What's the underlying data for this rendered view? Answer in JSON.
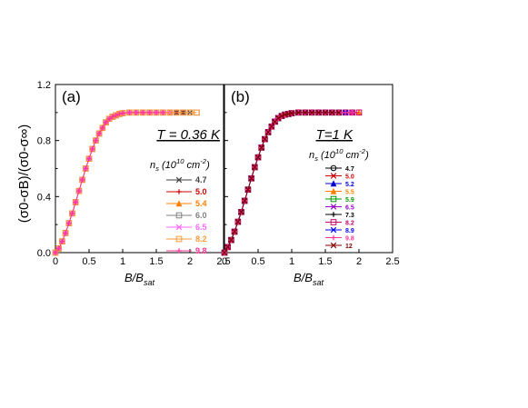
{
  "figure": {
    "ylabel": "(σ0-σB)/(σ0-σ∞)",
    "xlabel": "B/Bsat"
  },
  "chart_data": [
    {
      "type": "line",
      "panel_label": "(a)",
      "temperature_label": "T = 0.36 K",
      "legend_title": "ns (10^10 cm^-2)",
      "xlabel": "B/Bsat",
      "ylabel": "(σ0-σB)/(σ0-σ∞)",
      "xlim": [
        0,
        2.5
      ],
      "ylim": [
        0,
        1.2
      ],
      "xticks": [
        "0",
        "0.5",
        "1",
        "1.5",
        "2",
        "2.5"
      ],
      "yticks": [
        "0.0",
        "0.4",
        "0.8",
        "1.2"
      ],
      "grid": false,
      "legend_position": "right",
      "x": [
        0,
        0.05,
        0.1,
        0.15,
        0.2,
        0.25,
        0.3,
        0.35,
        0.4,
        0.45,
        0.5,
        0.55,
        0.6,
        0.65,
        0.7,
        0.75,
        0.8,
        0.85,
        0.9,
        0.95,
        1.0,
        1.1,
        1.2,
        1.3,
        1.4,
        1.5,
        1.6,
        1.7,
        1.8,
        1.9,
        2.0,
        2.1
      ],
      "series": [
        {
          "name": "4.7",
          "color": "#404040",
          "marker": "x",
          "values": [
            0,
            0.03,
            0.08,
            0.14,
            0.21,
            0.28,
            0.36,
            0.44,
            0.52,
            0.6,
            0.67,
            0.74,
            0.8,
            0.85,
            0.89,
            0.93,
            0.955,
            0.97,
            0.98,
            0.99,
            0.995,
            1,
            1,
            1,
            1,
            1,
            1,
            1,
            1,
            1,
            1,
            null
          ]
        },
        {
          "name": "5.0",
          "color": "#cc0000",
          "marker": "plus",
          "values": [
            0,
            0.03,
            0.08,
            0.14,
            0.21,
            0.28,
            0.36,
            0.44,
            0.52,
            0.6,
            0.67,
            0.74,
            0.8,
            0.85,
            0.89,
            0.93,
            0.955,
            0.97,
            0.98,
            0.99,
            0.995,
            1,
            1,
            1,
            1,
            1,
            1,
            1,
            1,
            1,
            null,
            null
          ]
        },
        {
          "name": "5.4",
          "color": "#ff8000",
          "marker": "triangle",
          "values": [
            0,
            0.03,
            0.08,
            0.14,
            0.21,
            0.28,
            0.36,
            0.44,
            0.52,
            0.6,
            0.67,
            0.74,
            0.8,
            0.85,
            0.89,
            0.93,
            0.955,
            0.97,
            0.98,
            0.99,
            0.995,
            1,
            1,
            1,
            1,
            1,
            1,
            1,
            null,
            null,
            null,
            null
          ]
        },
        {
          "name": "6.0",
          "color": "#808080",
          "marker": "square",
          "values": [
            0,
            0.03,
            0.08,
            0.14,
            0.21,
            0.28,
            0.36,
            0.44,
            0.52,
            0.6,
            0.67,
            0.74,
            0.8,
            0.85,
            0.89,
            0.93,
            0.955,
            0.97,
            0.98,
            0.99,
            0.995,
            1,
            1,
            1,
            1,
            1,
            1,
            1,
            1,
            1,
            1,
            1
          ]
        },
        {
          "name": "6.5",
          "color": "#ff66ff",
          "marker": "x",
          "values": [
            0,
            0.03,
            0.08,
            0.14,
            0.21,
            0.28,
            0.36,
            0.44,
            0.52,
            0.6,
            0.67,
            0.74,
            0.8,
            0.85,
            0.89,
            0.93,
            0.955,
            0.97,
            0.98,
            0.99,
            0.995,
            1,
            1,
            1,
            1,
            1,
            1,
            1,
            null,
            null,
            null,
            null
          ]
        },
        {
          "name": "8.2",
          "color": "#ff9933",
          "marker": "square",
          "values": [
            0,
            0.03,
            0.08,
            0.14,
            0.21,
            0.28,
            0.36,
            0.44,
            0.52,
            0.6,
            0.67,
            0.74,
            0.8,
            0.85,
            0.89,
            0.93,
            0.955,
            0.97,
            0.98,
            0.99,
            0.995,
            1,
            1,
            1,
            1,
            1,
            1,
            1,
            1,
            1,
            1,
            1
          ]
        },
        {
          "name": "9.8",
          "color": "#ff3399",
          "marker": "plus",
          "values": [
            0,
            0.03,
            0.08,
            0.14,
            0.21,
            0.28,
            0.36,
            0.44,
            0.52,
            0.6,
            0.67,
            0.74,
            0.8,
            0.85,
            0.89,
            0.93,
            0.955,
            0.97,
            0.98,
            0.99,
            0.995,
            1,
            1,
            1,
            1,
            1,
            1,
            null,
            null,
            null,
            null,
            null
          ]
        }
      ]
    },
    {
      "type": "line",
      "panel_label": "(b)",
      "temperature_label": "T=1 K",
      "legend_title": "ns (10^10 cm^-2)",
      "xlabel": "B/Bsat",
      "ylabel": "",
      "xlim": [
        0,
        2.5
      ],
      "ylim": [
        0,
        1.2
      ],
      "xticks": [
        "0",
        "0.5",
        "1",
        "1.5",
        "2",
        "2.5"
      ],
      "yticks": [],
      "grid": false,
      "legend_position": "right",
      "x": [
        0,
        0.05,
        0.1,
        0.15,
        0.2,
        0.25,
        0.3,
        0.35,
        0.4,
        0.45,
        0.5,
        0.55,
        0.6,
        0.65,
        0.7,
        0.75,
        0.8,
        0.85,
        0.9,
        0.95,
        1.0,
        1.1,
        1.2,
        1.3,
        1.4,
        1.5,
        1.6,
        1.7,
        1.8,
        1.9,
        2.0
      ],
      "series": [
        {
          "name": "4.7",
          "color": "#000000",
          "marker": "circle",
          "values": [
            0,
            0.04,
            0.09,
            0.15,
            0.22,
            0.29,
            0.37,
            0.45,
            0.53,
            0.61,
            0.68,
            0.75,
            0.81,
            0.86,
            0.9,
            0.935,
            0.96,
            0.975,
            0.985,
            0.99,
            0.995,
            1,
            1,
            1,
            1,
            1,
            1,
            1,
            1,
            null,
            null
          ]
        },
        {
          "name": "5.0",
          "color": "#cc0000",
          "marker": "x",
          "values": [
            0,
            0.04,
            0.09,
            0.15,
            0.22,
            0.29,
            0.37,
            0.45,
            0.53,
            0.61,
            0.68,
            0.75,
            0.81,
            0.86,
            0.9,
            0.935,
            0.96,
            0.975,
            0.985,
            0.99,
            0.995,
            1,
            1,
            1,
            1,
            1,
            1,
            1,
            null,
            null,
            null
          ]
        },
        {
          "name": "5.2",
          "color": "#0000cc",
          "marker": "triangle",
          "values": [
            0,
            0.04,
            0.09,
            0.15,
            0.22,
            0.29,
            0.37,
            0.45,
            0.53,
            0.61,
            0.68,
            0.75,
            0.81,
            0.86,
            0.9,
            0.935,
            0.96,
            0.975,
            0.985,
            0.99,
            0.995,
            1,
            1,
            1,
            1,
            1,
            1,
            1,
            1,
            1,
            null
          ]
        },
        {
          "name": "5.5",
          "color": "#ff8000",
          "marker": "triangle",
          "values": [
            0,
            0.04,
            0.09,
            0.15,
            0.22,
            0.29,
            0.37,
            0.45,
            0.53,
            0.61,
            0.68,
            0.75,
            0.81,
            0.86,
            0.9,
            0.935,
            0.96,
            0.975,
            0.985,
            0.99,
            0.995,
            1,
            1,
            1,
            1,
            1,
            1,
            1,
            1,
            1,
            1
          ]
        },
        {
          "name": "5.9",
          "color": "#009900",
          "marker": "square",
          "values": [
            0,
            0.04,
            0.09,
            0.15,
            0.22,
            0.29,
            0.37,
            0.45,
            0.53,
            0.61,
            0.68,
            0.75,
            0.81,
            0.86,
            0.9,
            0.935,
            0.96,
            0.975,
            0.985,
            0.99,
            0.995,
            1,
            1,
            1,
            1,
            1,
            1,
            1,
            null,
            null,
            null
          ]
        },
        {
          "name": "6.5",
          "color": "#9900cc",
          "marker": "x",
          "values": [
            0,
            0.04,
            0.09,
            0.15,
            0.22,
            0.29,
            0.37,
            0.45,
            0.53,
            0.61,
            0.68,
            0.75,
            0.81,
            0.86,
            0.9,
            0.935,
            0.96,
            0.975,
            0.985,
            0.99,
            0.995,
            1,
            1,
            1,
            1,
            1,
            1,
            1,
            1,
            1,
            null
          ]
        },
        {
          "name": "7.3",
          "color": "#000000",
          "marker": "plus",
          "values": [
            0,
            0.04,
            0.09,
            0.15,
            0.22,
            0.29,
            0.37,
            0.45,
            0.53,
            0.61,
            0.68,
            0.75,
            0.81,
            0.86,
            0.9,
            0.935,
            0.96,
            0.975,
            0.985,
            0.99,
            0.995,
            1,
            1,
            1,
            1,
            1,
            1,
            null,
            null,
            null,
            null
          ]
        },
        {
          "name": "8.2",
          "color": "#cc0066",
          "marker": "square",
          "values": [
            0,
            0.04,
            0.09,
            0.15,
            0.22,
            0.29,
            0.37,
            0.45,
            0.53,
            0.61,
            0.68,
            0.75,
            0.81,
            0.86,
            0.9,
            0.935,
            0.96,
            0.975,
            0.985,
            0.99,
            0.995,
            1,
            1,
            1,
            1,
            1,
            1,
            1,
            1,
            1,
            1
          ]
        },
        {
          "name": "8.9",
          "color": "#0000ff",
          "marker": "x",
          "values": [
            0,
            0.04,
            0.09,
            0.15,
            0.22,
            0.29,
            0.37,
            0.45,
            0.53,
            0.61,
            0.68,
            0.75,
            0.81,
            0.86,
            0.9,
            0.935,
            0.96,
            0.975,
            0.985,
            0.99,
            0.995,
            1,
            1,
            1,
            1,
            1,
            1,
            1,
            1,
            null,
            null
          ]
        },
        {
          "name": "9.8",
          "color": "#ff3399",
          "marker": "plus",
          "values": [
            0,
            0.04,
            0.09,
            0.15,
            0.22,
            0.29,
            0.37,
            0.45,
            0.53,
            0.61,
            0.68,
            0.75,
            0.81,
            0.86,
            0.9,
            0.935,
            0.96,
            0.975,
            0.985,
            0.99,
            0.995,
            1,
            1,
            1,
            1,
            1,
            1,
            1,
            1,
            1,
            null
          ]
        },
        {
          "name": "12",
          "color": "#800000",
          "marker": "x",
          "values": [
            0,
            0.04,
            0.09,
            0.15,
            0.22,
            0.29,
            0.37,
            0.45,
            0.53,
            0.61,
            0.68,
            0.75,
            0.81,
            0.86,
            0.9,
            0.935,
            0.96,
            0.975,
            0.985,
            0.99,
            0.995,
            1,
            1,
            1,
            1,
            1,
            1,
            1,
            null,
            null,
            null
          ]
        }
      ]
    }
  ]
}
